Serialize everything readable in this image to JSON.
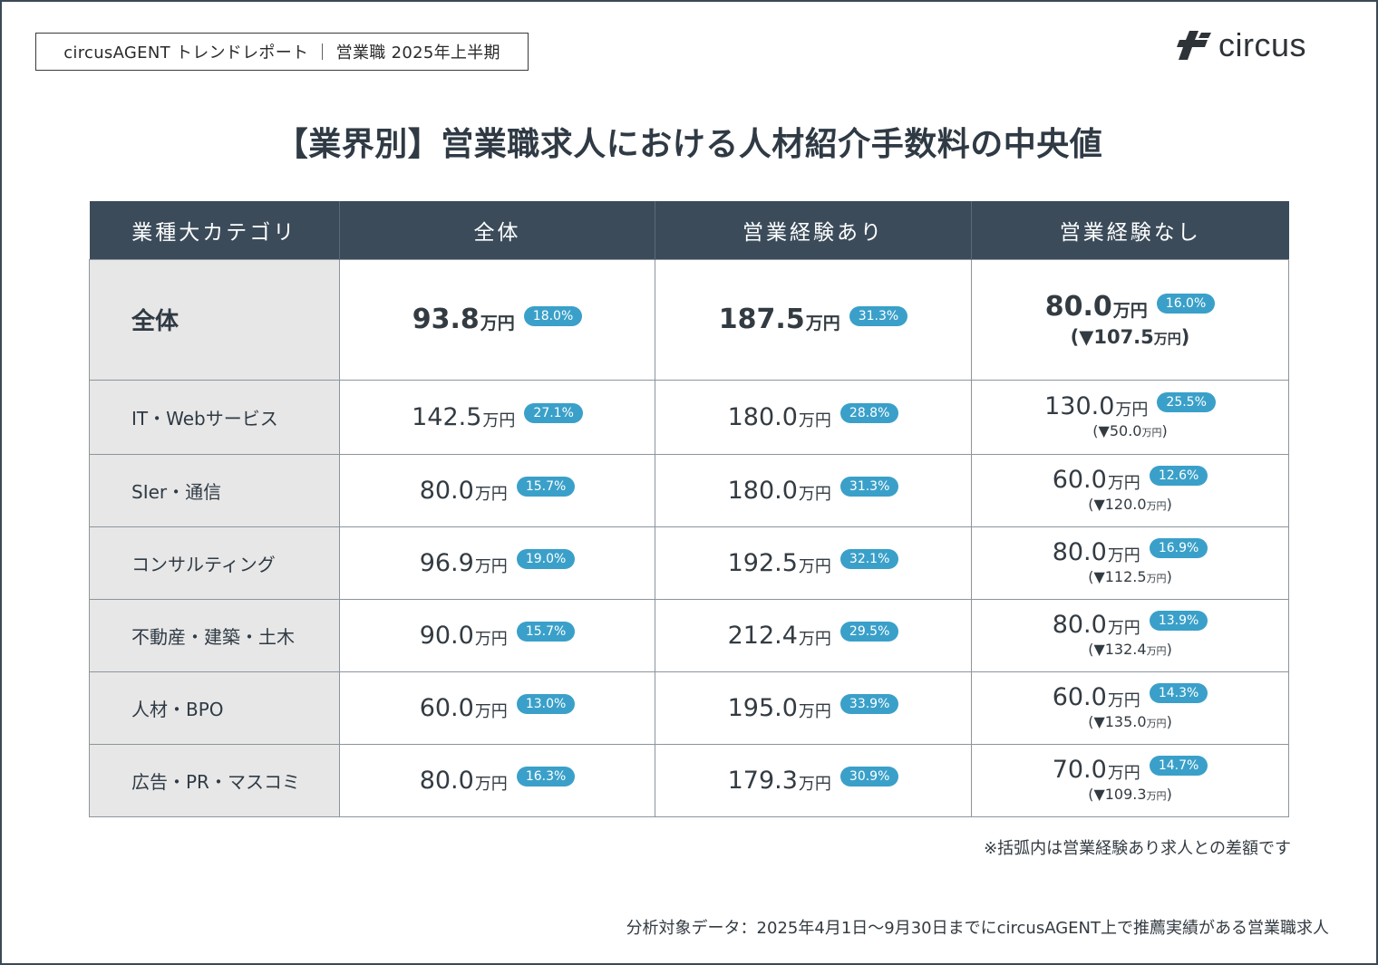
{
  "header": {
    "report_label": "circusAGENT トレンドレポート ｜ 営業職 2025年上半期",
    "logo_text": "circus"
  },
  "title": "【業界別】営業職求人における人材紹介手数料の中央値",
  "table": {
    "headers": [
      "業種大カテゴリ",
      "全体",
      "営業経験あり",
      "営業経験なし"
    ],
    "unit": "万円",
    "rows": [
      {
        "category": "全体",
        "total": {
          "value": "93.8",
          "pct": "18.0%"
        },
        "with_exp": {
          "value": "187.5",
          "pct": "31.3%"
        },
        "without_exp": {
          "value": "80.0",
          "pct": "16.0%",
          "diff": "107.5"
        }
      },
      {
        "category": "IT・Webサービス",
        "total": {
          "value": "142.5",
          "pct": "27.1%"
        },
        "with_exp": {
          "value": "180.0",
          "pct": "28.8%"
        },
        "without_exp": {
          "value": "130.0",
          "pct": "25.5%",
          "diff": "50.0"
        }
      },
      {
        "category": "SIer・通信",
        "total": {
          "value": "80.0",
          "pct": "15.7%"
        },
        "with_exp": {
          "value": "180.0",
          "pct": "31.3%"
        },
        "without_exp": {
          "value": "60.0",
          "pct": "12.6%",
          "diff": "120.0"
        }
      },
      {
        "category": "コンサルティング",
        "total": {
          "value": "96.9",
          "pct": "19.0%"
        },
        "with_exp": {
          "value": "192.5",
          "pct": "32.1%"
        },
        "without_exp": {
          "value": "80.0",
          "pct": "16.9%",
          "diff": "112.5"
        }
      },
      {
        "category": "不動産・建築・土木",
        "total": {
          "value": "90.0",
          "pct": "15.7%"
        },
        "with_exp": {
          "value": "212.4",
          "pct": "29.5%"
        },
        "without_exp": {
          "value": "80.0",
          "pct": "13.9%",
          "diff": "132.4"
        }
      },
      {
        "category": "人材・BPO",
        "total": {
          "value": "60.0",
          "pct": "13.0%"
        },
        "with_exp": {
          "value": "195.0",
          "pct": "33.9%"
        },
        "without_exp": {
          "value": "60.0",
          "pct": "14.3%",
          "diff": "135.0"
        }
      },
      {
        "category": "広告・PR・マスコミ",
        "total": {
          "value": "80.0",
          "pct": "16.3%"
        },
        "with_exp": {
          "value": "179.3",
          "pct": "30.9%"
        },
        "without_exp": {
          "value": "70.0",
          "pct": "14.7%",
          "diff": "109.3"
        }
      }
    ]
  },
  "note": "※括弧内は営業経験あり求人との差額です",
  "source": "分析対象データ：2025年4月1日〜9月30日までにcircusAGENT上で推薦実績がある営業職求人",
  "colors": {
    "header_bg": "#3b4b5a",
    "badge": "#3aa0c9",
    "category_bg": "#e7e7e7"
  }
}
